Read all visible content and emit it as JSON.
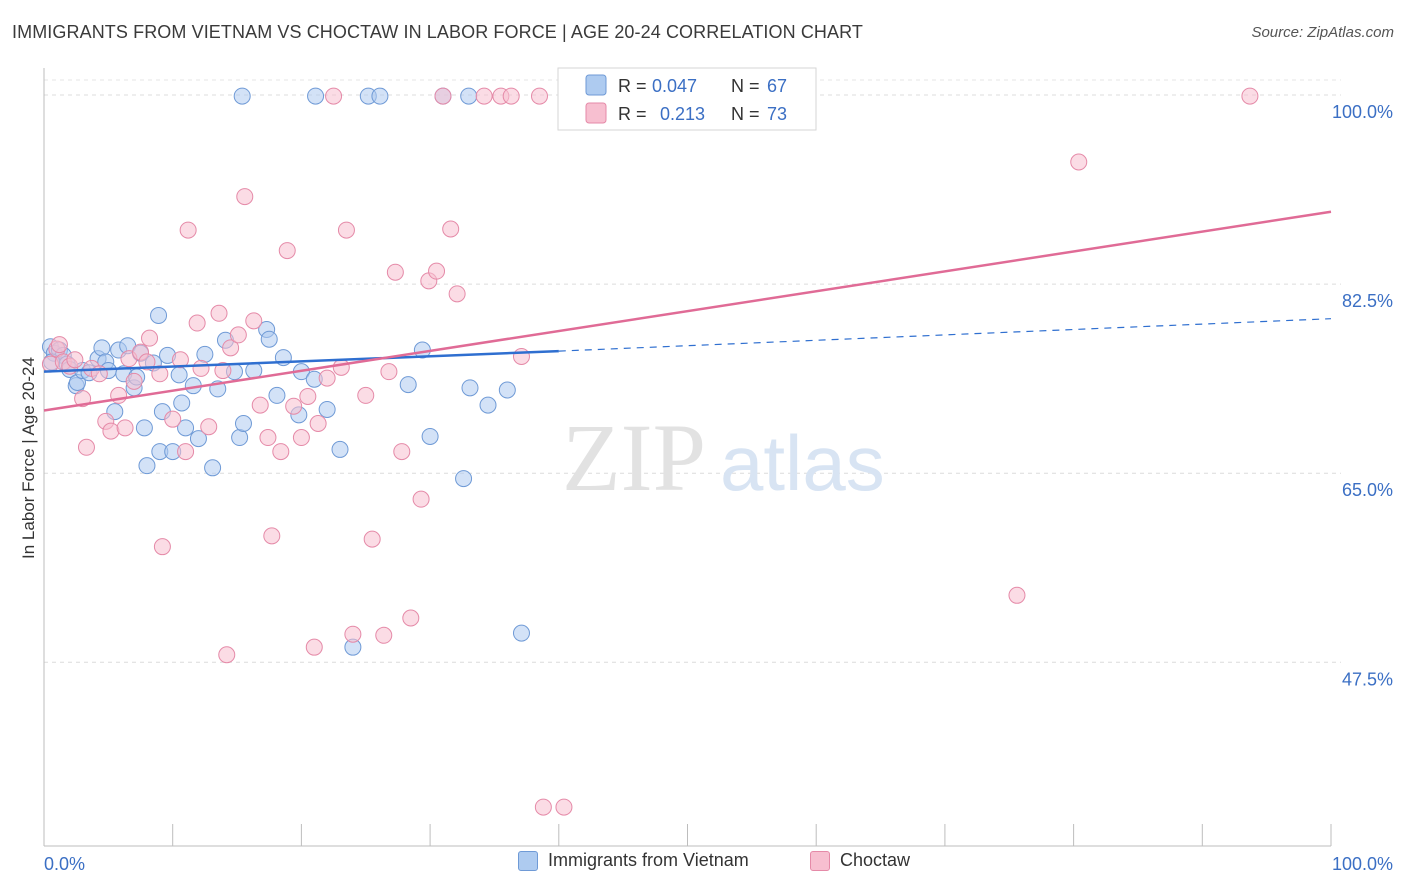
{
  "header": {
    "title": "IMMIGRANTS FROM VIETNAM VS CHOCTAW IN LABOR FORCE | AGE 20-24 CORRELATION CHART",
    "source": "Source: ZipAtlas.com"
  },
  "watermark": {
    "zip": "ZIP",
    "atlas": "atlas"
  },
  "colors": {
    "blue_fill": "#aecbf0",
    "blue_stroke": "#6f9ad6",
    "blue_line": "#2f6fd0",
    "pink_fill": "#f7bfd0",
    "pink_stroke": "#e58aa8",
    "pink_line": "#e06b96",
    "tick_label": "#3b6fc4"
  },
  "stats_legend": {
    "rows": [
      {
        "r_label": "R =",
        "r_value": "0.047",
        "n_label": "N =",
        "n_value": "67"
      },
      {
        "r_label": "R =",
        "r_value": "0.213",
        "n_label": "N =",
        "n_value": "73"
      }
    ]
  },
  "chart_data": {
    "type": "scatter",
    "title": "IMMIGRANTS FROM VIETNAM VS CHOCTAW IN LABOR FORCE | AGE 20-24 CORRELATION CHART",
    "xlabel": "",
    "ylabel": "In Labor Force | Age 20-24",
    "xlim": [
      0,
      100
    ],
    "ylim": [
      30.5,
      102.5
    ],
    "x_tick_labels": [
      {
        "value": 0,
        "label": "0.0%"
      },
      {
        "value": 100,
        "label": "100.0%"
      }
    ],
    "y_ticks": [
      {
        "value": 100,
        "label": "100.0%"
      },
      {
        "value": 82.5,
        "label": "82.5%"
      },
      {
        "value": 65,
        "label": "65.0%"
      },
      {
        "value": 47.5,
        "label": "47.5%"
      }
    ],
    "grid": true,
    "legend": "bottom",
    "series": [
      {
        "name": "Immigrants from Vietnam",
        "color": "#aecbf0",
        "trend": {
          "x": [
            0,
            40
          ],
          "y": [
            74.4,
            76.3
          ],
          "dashed_to": [
            100,
            79.3
          ]
        },
        "points": [
          [
            0.5,
            76.7
          ],
          [
            0.8,
            76.1
          ],
          [
            1.2,
            76.4
          ],
          [
            1.5,
            75.9
          ],
          [
            0.6,
            75.3
          ],
          [
            1.8,
            75.1
          ],
          [
            2.0,
            74.6
          ],
          [
            2.5,
            73.1
          ],
          [
            2.6,
            73.4
          ],
          [
            3.0,
            74.5
          ],
          [
            3.5,
            74.3
          ],
          [
            4.2,
            75.6
          ],
          [
            4.5,
            76.6
          ],
          [
            4.8,
            75.3
          ],
          [
            5.0,
            74.5
          ],
          [
            5.5,
            70.7
          ],
          [
            5.8,
            76.4
          ],
          [
            6.2,
            74.2
          ],
          [
            6.5,
            76.8
          ],
          [
            7.0,
            72.9
          ],
          [
            7.2,
            73.9
          ],
          [
            7.5,
            76.1
          ],
          [
            7.8,
            69.2
          ],
          [
            8.0,
            65.7
          ],
          [
            8.5,
            75.2
          ],
          [
            8.9,
            79.6
          ],
          [
            9.0,
            67.0
          ],
          [
            9.2,
            70.7
          ],
          [
            9.6,
            75.9
          ],
          [
            10.0,
            67.0
          ],
          [
            10.5,
            74.1
          ],
          [
            10.7,
            71.5
          ],
          [
            11.0,
            69.2
          ],
          [
            11.6,
            73.1
          ],
          [
            12.0,
            68.2
          ],
          [
            12.5,
            76.0
          ],
          [
            13.1,
            65.5
          ],
          [
            13.5,
            72.8
          ],
          [
            14.1,
            77.3
          ],
          [
            14.8,
            74.4
          ],
          [
            15.2,
            68.3
          ],
          [
            15.5,
            69.6
          ],
          [
            16.3,
            74.5
          ],
          [
            17.3,
            78.3
          ],
          [
            17.5,
            77.4
          ],
          [
            18.1,
            72.2
          ],
          [
            18.6,
            75.7
          ],
          [
            19.8,
            70.4
          ],
          [
            20.0,
            74.4
          ],
          [
            21.0,
            73.7
          ],
          [
            22.0,
            70.9
          ],
          [
            23.0,
            67.2
          ],
          [
            24.0,
            48.9
          ],
          [
            25.2,
            99.9
          ],
          [
            26.1,
            99.9
          ],
          [
            28.3,
            73.2
          ],
          [
            29.4,
            76.4
          ],
          [
            30.0,
            68.4
          ],
          [
            31.0,
            99.9
          ],
          [
            32.6,
            64.5
          ],
          [
            33.1,
            72.9
          ],
          [
            34.5,
            71.3
          ],
          [
            36.0,
            72.7
          ],
          [
            37.1,
            50.2
          ],
          [
            15.4,
            99.9
          ],
          [
            21.1,
            99.9
          ],
          [
            33.0,
            99.9
          ]
        ]
      },
      {
        "name": "Choctaw",
        "color": "#f7bfd0",
        "trend": {
          "x": [
            0,
            100
          ],
          "y": [
            70.8,
            89.2
          ]
        },
        "points": [
          [
            0.5,
            75.1
          ],
          [
            1.0,
            76.5
          ],
          [
            1.2,
            76.9
          ],
          [
            1.5,
            75.3
          ],
          [
            2.0,
            74.9
          ],
          [
            2.4,
            75.5
          ],
          [
            3.0,
            71.9
          ],
          [
            3.3,
            67.4
          ],
          [
            3.7,
            74.7
          ],
          [
            4.3,
            74.2
          ],
          [
            4.8,
            69.8
          ],
          [
            5.2,
            68.9
          ],
          [
            5.8,
            72.2
          ],
          [
            6.3,
            69.2
          ],
          [
            6.6,
            75.6
          ],
          [
            7.0,
            73.5
          ],
          [
            7.5,
            76.2
          ],
          [
            8.0,
            75.3
          ],
          [
            8.2,
            77.5
          ],
          [
            9.0,
            74.2
          ],
          [
            9.2,
            58.2
          ],
          [
            10.0,
            70.0
          ],
          [
            10.6,
            75.5
          ],
          [
            11.0,
            67.0
          ],
          [
            11.2,
            87.5
          ],
          [
            11.9,
            78.9
          ],
          [
            12.2,
            74.7
          ],
          [
            12.8,
            69.3
          ],
          [
            13.6,
            79.8
          ],
          [
            13.9,
            74.5
          ],
          [
            14.2,
            48.2
          ],
          [
            14.5,
            76.6
          ],
          [
            15.1,
            77.8
          ],
          [
            15.6,
            90.6
          ],
          [
            16.3,
            79.1
          ],
          [
            16.8,
            71.3
          ],
          [
            17.4,
            68.3
          ],
          [
            17.7,
            59.2
          ],
          [
            18.4,
            67.0
          ],
          [
            18.9,
            85.6
          ],
          [
            19.4,
            71.2
          ],
          [
            20.0,
            68.3
          ],
          [
            20.5,
            72.1
          ],
          [
            21.0,
            48.9
          ],
          [
            21.3,
            69.6
          ],
          [
            22.0,
            73.8
          ],
          [
            22.5,
            99.9
          ],
          [
            23.1,
            74.8
          ],
          [
            23.5,
            87.5
          ],
          [
            24.0,
            50.1
          ],
          [
            25.0,
            72.2
          ],
          [
            25.5,
            58.9
          ],
          [
            26.4,
            50.0
          ],
          [
            26.8,
            74.4
          ],
          [
            27.3,
            83.6
          ],
          [
            27.8,
            67.0
          ],
          [
            28.5,
            51.6
          ],
          [
            29.3,
            62.6
          ],
          [
            29.9,
            82.8
          ],
          [
            30.5,
            83.7
          ],
          [
            31.0,
            99.9
          ],
          [
            31.6,
            87.6
          ],
          [
            32.1,
            81.6
          ],
          [
            34.2,
            99.9
          ],
          [
            35.5,
            99.9
          ],
          [
            36.3,
            99.9
          ],
          [
            37.1,
            75.8
          ],
          [
            38.5,
            99.9
          ],
          [
            38.8,
            34.1
          ],
          [
            40.4,
            34.1
          ],
          [
            75.6,
            53.7
          ],
          [
            80.4,
            93.8
          ],
          [
            93.7,
            99.9
          ]
        ]
      }
    ]
  },
  "bottom_legend": [
    {
      "label": "Immigrants from Vietnam"
    },
    {
      "label": "Choctaw"
    }
  ]
}
